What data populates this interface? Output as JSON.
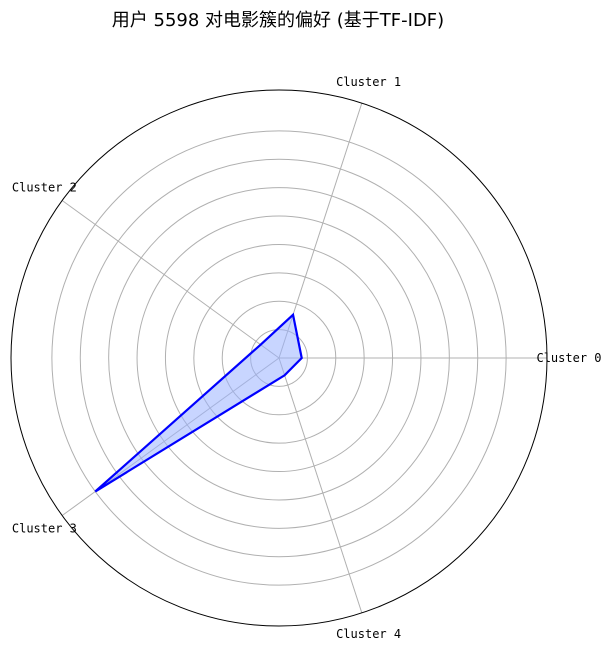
{
  "chart_data": {
    "type": "radar",
    "title": "用户 5598 对电影簇的偏好 (基于TF-IDF)",
    "categories": [
      "Cluster 0",
      "Cluster 1",
      "Cluster 2",
      "Cluster 3",
      "Cluster 4"
    ],
    "series": [
      {
        "values": [
          0.1,
          0.2,
          0.1,
          1.0,
          0.08
        ]
      }
    ],
    "rlim": [
      0,
      1.18
    ],
    "grid": true,
    "tick_labels_shown": false,
    "colors": {
      "line": "#0000ff",
      "fill": "#9bb3ff",
      "grid": "#b0b0b0",
      "frame": "#000000"
    }
  }
}
